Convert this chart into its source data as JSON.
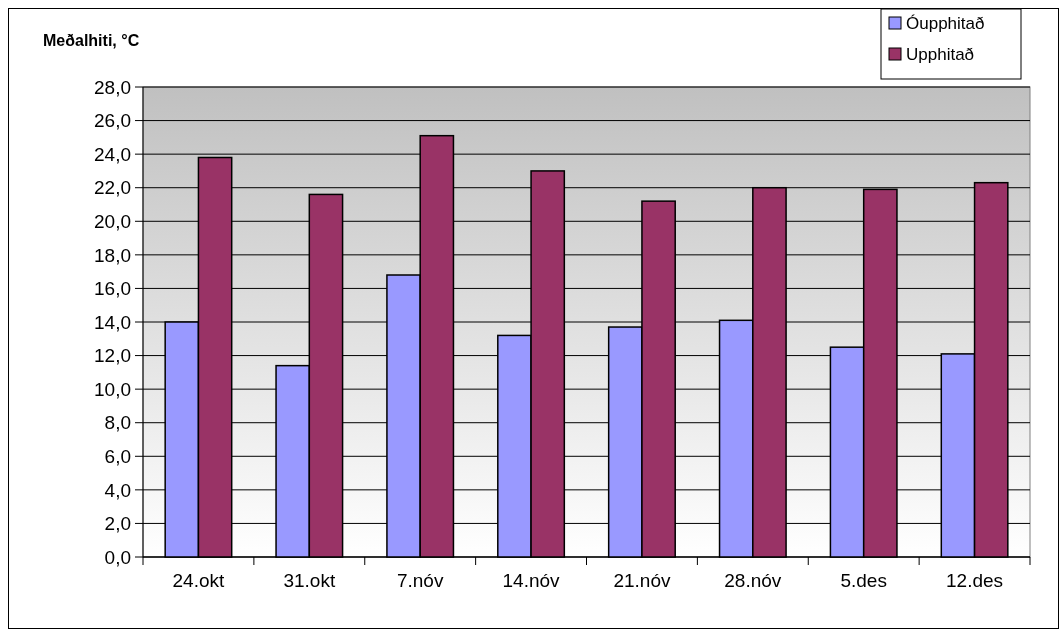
{
  "chart_data": {
    "type": "bar",
    "ylabel": "Meðalhiti, °C",
    "categories": [
      "24.okt",
      "31.okt",
      "7.nóv",
      "14.nóv",
      "21.nóv",
      "28.nóv",
      "5.des",
      "12.des"
    ],
    "series": [
      {
        "name": "Óupphitað",
        "color": "#9999ff",
        "values": [
          14.0,
          11.4,
          16.8,
          13.2,
          13.7,
          14.1,
          12.5,
          12.1
        ]
      },
      {
        "name": "Upphitað",
        "color": "#993366",
        "values": [
          23.8,
          21.6,
          25.1,
          23.0,
          21.2,
          22.0,
          21.9,
          22.3
        ]
      }
    ],
    "ylim": [
      0,
      28
    ],
    "yticks": [
      {
        "value": 0,
        "label": "0,0"
      },
      {
        "value": 2,
        "label": "2,0"
      },
      {
        "value": 4,
        "label": "4,0"
      },
      {
        "value": 6,
        "label": "6,0"
      },
      {
        "value": 8,
        "label": "8,0"
      },
      {
        "value": 10,
        "label": "10,0"
      },
      {
        "value": 12,
        "label": "12,0"
      },
      {
        "value": 14,
        "label": "14,0"
      },
      {
        "value": 16,
        "label": "16,0"
      },
      {
        "value": 18,
        "label": "18,0"
      },
      {
        "value": 20,
        "label": "20,0"
      },
      {
        "value": 22,
        "label": "22,0"
      },
      {
        "value": 24,
        "label": "24,0"
      },
      {
        "value": 26,
        "label": "26,0"
      },
      {
        "value": 28,
        "label": "28,0"
      }
    ],
    "grid": "y",
    "legend": "top right"
  }
}
